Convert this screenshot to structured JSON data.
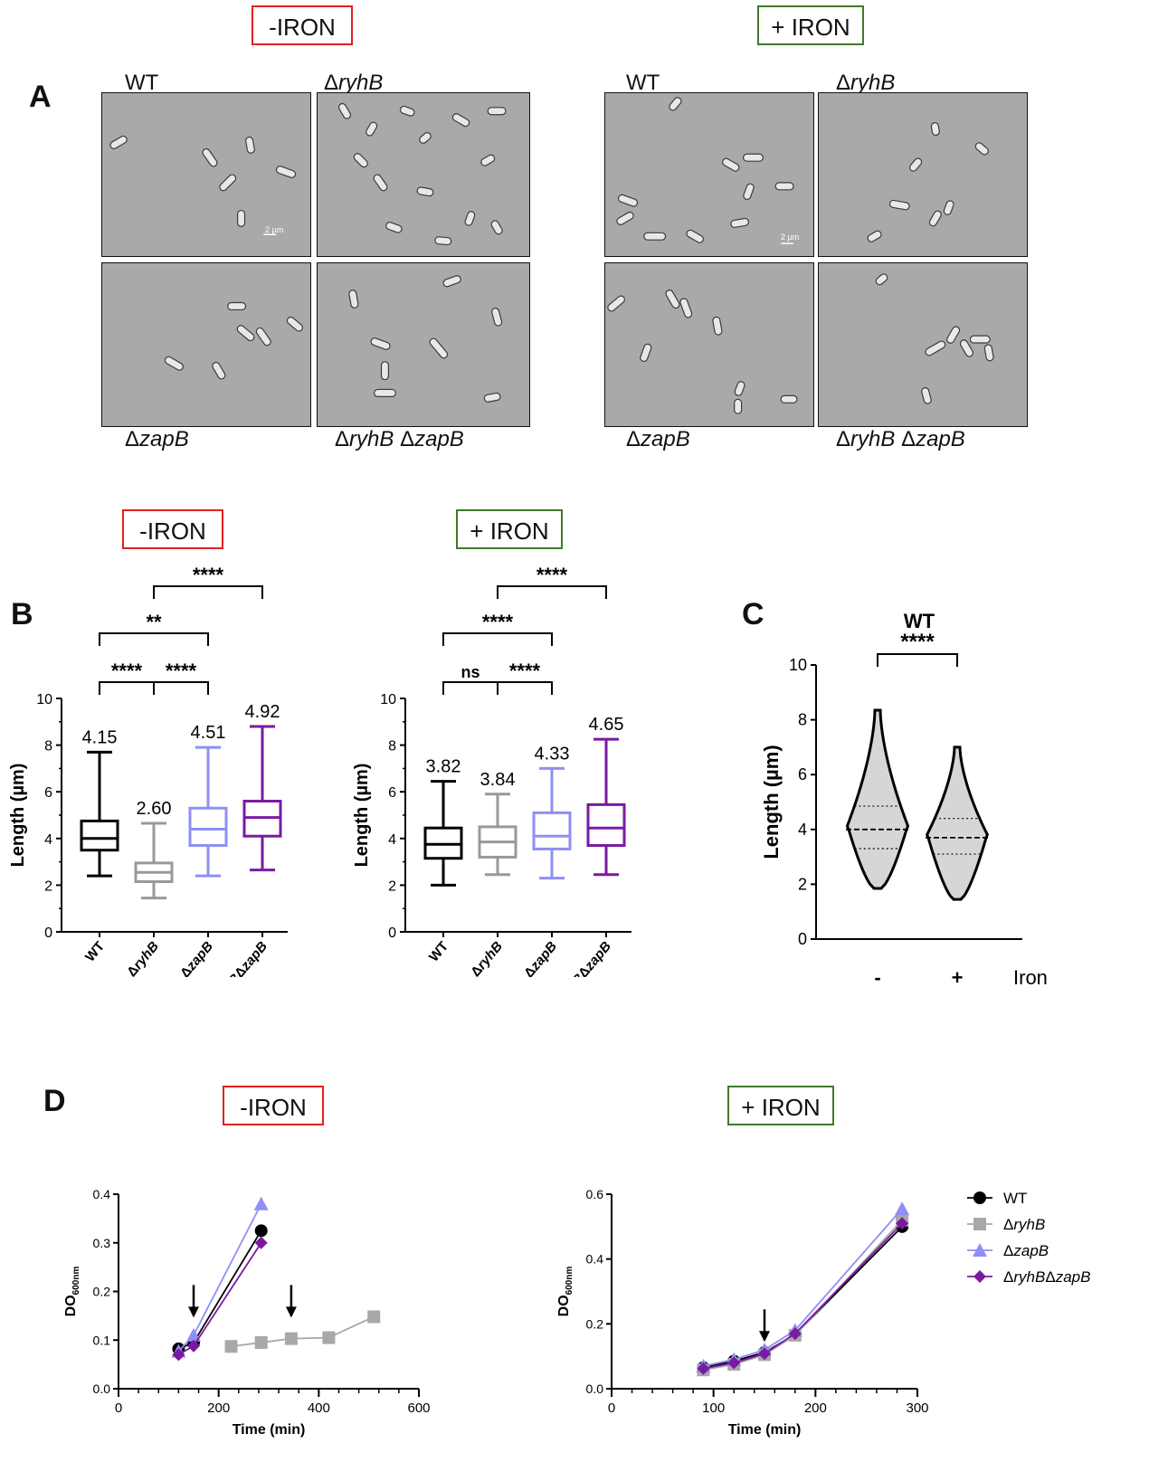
{
  "panel_a": {
    "letter": "A",
    "conditions": [
      {
        "label": "-IRON"
      },
      {
        "label": "+ IRON"
      }
    ],
    "strains": {
      "wt": "WT",
      "ryhb": "ryhB",
      "zapb": "zapB",
      "double_1": "ryhB",
      "double_2": "zapB",
      "delta": "Δ"
    },
    "scale_bar": "2 µm"
  },
  "panel_b": {
    "letter": "B",
    "conditions": [
      "-IRON",
      "+ IRON"
    ]
  },
  "panel_c": {
    "letter": "C"
  },
  "panel_d": {
    "letter": "D",
    "conditions": [
      "-IRON",
      "+ IRON"
    ]
  },
  "chart_data": [
    {
      "id": "B-minus-iron",
      "type": "box",
      "ylabel": "Length (µm)",
      "ylim": [
        0,
        10
      ],
      "yticks": [
        0,
        2,
        4,
        6,
        8,
        10
      ],
      "categories": [
        "WT",
        "ΔryhB",
        "ΔzapB",
        "ΔryhBΔzapB"
      ],
      "colors": [
        "#000000",
        "#999999",
        "#8f8ff5",
        "#7a1aa0"
      ],
      "means_text": [
        "4.15",
        "2.60",
        "4.51",
        "4.92"
      ],
      "boxes": [
        {
          "min": 2.4,
          "q1": 3.5,
          "median": 4.0,
          "q3": 4.75,
          "max": 7.7
        },
        {
          "min": 1.45,
          "q1": 2.15,
          "median": 2.55,
          "q3": 2.95,
          "max": 4.65
        },
        {
          "min": 2.4,
          "q1": 3.7,
          "median": 4.4,
          "q3": 5.3,
          "max": 7.9
        },
        {
          "min": 2.65,
          "q1": 4.1,
          "median": 4.9,
          "q3": 5.6,
          "max": 8.8
        }
      ],
      "significance": [
        {
          "from": 0,
          "to": 1,
          "text": "****",
          "level": 0
        },
        {
          "from": 1,
          "to": 2,
          "text": "****",
          "level": 0
        },
        {
          "from": 0,
          "to": 2,
          "text": "**",
          "level": 1
        },
        {
          "from": 1,
          "to": 3,
          "text": "****",
          "level": 2
        }
      ]
    },
    {
      "id": "B-plus-iron",
      "type": "box",
      "ylabel": "Length (µm)",
      "ylim": [
        0,
        10
      ],
      "yticks": [
        0,
        2,
        4,
        6,
        8,
        10
      ],
      "categories": [
        "WT",
        "ΔryhB",
        "ΔzapB",
        "ΔryhBΔzapB"
      ],
      "colors": [
        "#000000",
        "#999999",
        "#8f8ff5",
        "#7a1aa0"
      ],
      "means_text": [
        "3.82",
        "3.84",
        "4.33",
        "4.65"
      ],
      "boxes": [
        {
          "min": 2.0,
          "q1": 3.15,
          "median": 3.75,
          "q3": 4.45,
          "max": 6.45
        },
        {
          "min": 2.45,
          "q1": 3.2,
          "median": 3.85,
          "q3": 4.5,
          "max": 5.9
        },
        {
          "min": 2.3,
          "q1": 3.55,
          "median": 4.1,
          "q3": 5.1,
          "max": 7.0
        },
        {
          "min": 2.45,
          "q1": 3.7,
          "median": 4.45,
          "q3": 5.45,
          "max": 8.25
        }
      ],
      "significance": [
        {
          "from": 0,
          "to": 1,
          "text": "ns",
          "level": 0
        },
        {
          "from": 1,
          "to": 2,
          "text": "****",
          "level": 0
        },
        {
          "from": 0,
          "to": 2,
          "text": "****",
          "level": 1
        },
        {
          "from": 1,
          "to": 3,
          "text": "****",
          "level": 2
        }
      ]
    },
    {
      "id": "C-violin",
      "type": "violin",
      "title": "WT",
      "ylabel": "Length (µm)",
      "ylim": [
        0,
        10
      ],
      "yticks": [
        0,
        2,
        4,
        6,
        8,
        10
      ],
      "categories": [
        "-",
        "+"
      ],
      "xlabel": "Iron",
      "violins": [
        {
          "min": 1.85,
          "q1": 3.3,
          "median": 4.0,
          "q3": 4.85,
          "max": 8.35
        },
        {
          "min": 1.45,
          "q1": 3.1,
          "median": 3.7,
          "q3": 4.4,
          "max": 7.0
        }
      ],
      "significance": {
        "text": "****"
      }
    },
    {
      "id": "D-minus-iron",
      "type": "line",
      "xlabel": "Time (min)",
      "ylabel": "DO",
      "ylabel_sub": "600nm",
      "xlim": [
        0,
        600
      ],
      "ylim": [
        0,
        0.4
      ],
      "xticks": [
        0,
        200,
        400,
        600
      ],
      "yticks": [
        0.0,
        0.1,
        0.2,
        0.3,
        0.4
      ],
      "ytick_labels": [
        "0.0",
        "0.1",
        "0.2",
        "0.3",
        "0.4"
      ],
      "series": [
        {
          "name": "WT",
          "color": "#000000",
          "marker": "circle",
          "points": [
            [
              120,
              0.082
            ],
            [
              150,
              0.095
            ],
            [
              285,
              0.325
            ]
          ]
        },
        {
          "name": "ΔryhB",
          "color": "#a8a8a8",
          "marker": "square",
          "points": [
            [
              225,
              0.087
            ],
            [
              285,
              0.095
            ],
            [
              345,
              0.103
            ],
            [
              420,
              0.105
            ],
            [
              510,
              0.148
            ]
          ]
        },
        {
          "name": "ΔzapB",
          "color": "#8f8ff5",
          "marker": "triangle",
          "points": [
            [
              120,
              0.077
            ],
            [
              150,
              0.11
            ],
            [
              285,
              0.38
            ]
          ]
        },
        {
          "name": "ΔryhBΔzapB",
          "color": "#7a1aa0",
          "marker": "diamond",
          "points": [
            [
              120,
              0.07
            ],
            [
              150,
              0.088
            ],
            [
              285,
              0.3
            ]
          ]
        }
      ],
      "arrows_at": [
        [
          150,
          0.15
        ],
        [
          345,
          0.15
        ]
      ]
    },
    {
      "id": "D-plus-iron",
      "type": "line",
      "xlabel": "Time (min)",
      "ylabel": "DO",
      "ylabel_sub": "600nm",
      "xlim": [
        0,
        300
      ],
      "ylim": [
        0,
        0.6
      ],
      "xticks": [
        0,
        100,
        200,
        300
      ],
      "yticks": [
        0.0,
        0.2,
        0.4,
        0.6
      ],
      "ytick_labels": [
        "0.0",
        "0.2",
        "0.4",
        "0.6"
      ],
      "series": [
        {
          "name": "WT",
          "color": "#000000",
          "marker": "circle",
          "points": [
            [
              90,
              0.065
            ],
            [
              120,
              0.085
            ],
            [
              150,
              0.112
            ],
            [
              180,
              0.167
            ],
            [
              285,
              0.5
            ]
          ]
        },
        {
          "name": "ΔryhB",
          "color": "#a8a8a8",
          "marker": "square",
          "points": [
            [
              90,
              0.058
            ],
            [
              120,
              0.075
            ],
            [
              150,
              0.105
            ],
            [
              180,
              0.165
            ],
            [
              285,
              0.52
            ]
          ]
        },
        {
          "name": "ΔzapB",
          "color": "#8f8ff5",
          "marker": "triangle",
          "points": [
            [
              90,
              0.07
            ],
            [
              120,
              0.09
            ],
            [
              150,
              0.12
            ],
            [
              180,
              0.18
            ],
            [
              285,
              0.555
            ]
          ]
        },
        {
          "name": "ΔryhBΔzapB",
          "color": "#7a1aa0",
          "marker": "diamond",
          "points": [
            [
              90,
              0.062
            ],
            [
              120,
              0.08
            ],
            [
              150,
              0.108
            ],
            [
              180,
              0.17
            ],
            [
              285,
              0.51
            ]
          ]
        }
      ],
      "arrows_at": [
        [
          150,
          0.15
        ]
      ],
      "legend": "right"
    }
  ]
}
